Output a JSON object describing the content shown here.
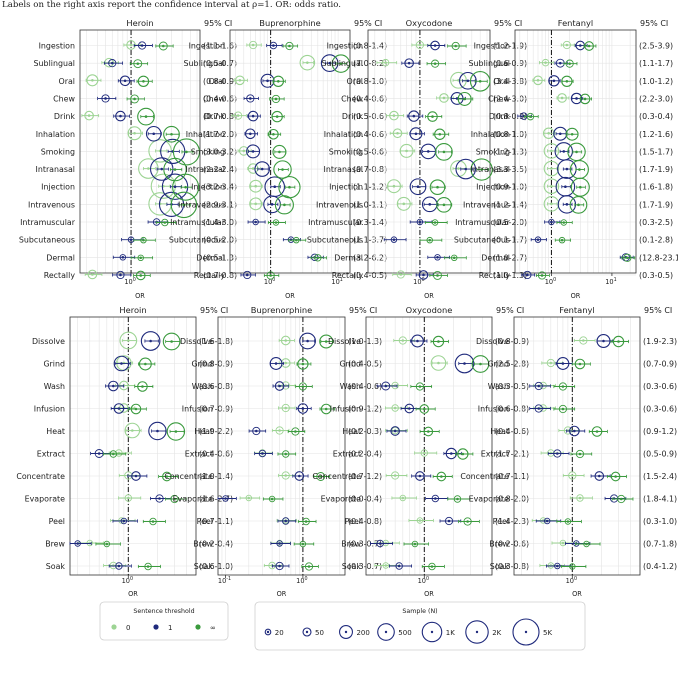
{
  "caption": "Labels on the right axis report the confidence interval at ρ=1. OR: odds ratio.",
  "colors": {
    "t0": "#9dd494",
    "t1": "#1f2a7c",
    "tinf": "#3a9a3d",
    "ref": "#999999"
  },
  "legend_threshold": {
    "title": "Sentence threshold",
    "labels": [
      "0",
      "1",
      "∞"
    ]
  },
  "legend_sample": {
    "title": "Sample (N)",
    "labels": [
      "20",
      "50",
      "200",
      "500",
      "1K",
      "2K",
      "5K"
    ]
  },
  "chart_data": [
    {
      "type": "scatter",
      "group": "routes",
      "title": "Heroin",
      "xlabel": "OR",
      "ci_header": "95% CI",
      "xscale": "log",
      "categories": [
        "Ingestion",
        "Sublingual",
        "Oral",
        "Chew",
        "Drink",
        "Inhalation",
        "Smoking",
        "Intranasal",
        "Injection",
        "Intravenous",
        "Intramuscular",
        "Subcutaneous",
        "Dermal",
        "Rectally"
      ],
      "ci_labels": [
        "(1.1-1.6)",
        "(0.5-0.7)",
        "(0.8-0.9)",
        "(0.4-0.6)",
        "(0.7-0.8)",
        "(1.7-2.0)",
        "(3.0-3.2)",
        "(2.2-2.4)",
        "(3.2-3.4)",
        "(2.9-3.1)",
        "(1.4-3.0)",
        "(0.5-2.0)",
        "(0.5-1.3)",
        "(0.7-0.8)"
      ],
      "series": [
        {
          "name": "0",
          "values": [
            1.0,
            0.55,
            0.35,
            null,
            0.32,
            1.1,
            2.2,
            1.6,
            2.4,
            2.2,
            null,
            null,
            null,
            0.35
          ],
          "n": [
            60,
            60,
            120,
            null,
            60,
            200,
            2000,
            1000,
            3000,
            2000,
            null,
            null,
            null,
            60
          ]
        },
        {
          "name": "1",
          "values": [
            1.35,
            0.6,
            0.85,
            0.5,
            0.75,
            1.85,
            3.1,
            2.3,
            3.3,
            3.0,
            2.0,
            1.0,
            0.8,
            0.75
          ],
          "n": [
            40,
            40,
            80,
            40,
            80,
            300,
            3000,
            2000,
            4000,
            3000,
            30,
            20,
            20,
            40
          ]
        },
        {
          "name": "∞",
          "values": [
            2.4,
            1.2,
            1.4,
            1.1,
            1.5,
            3.0,
            4.5,
            3.3,
            4.4,
            4.2,
            2.5,
            1.4,
            1.3,
            1.3
          ],
          "n": [
            50,
            50,
            100,
            50,
            500,
            400,
            5000,
            2000,
            5000,
            4000,
            30,
            20,
            20,
            60
          ]
        }
      ]
    },
    {
      "type": "scatter",
      "group": "routes",
      "title": "Buprenorphine",
      "xlabel": "OR",
      "ci_header": "95% CI",
      "xscale": "log",
      "categories": [
        "Ingestion",
        "Sublingual",
        "Oral",
        "Chew",
        "Drink",
        "Inhalation",
        "Smoking",
        "Intranasal",
        "Injection",
        "Intravenous",
        "Intramuscular",
        "Subcutaneous",
        "Dermal",
        "Rectally"
      ],
      "ci_labels": [
        "(0.8-1.4)",
        "(7.0-8.2)",
        "(0.8-1.0)",
        "(0.4-0.6)",
        "(0.5-0.6)",
        "(0.4-0.6)",
        "(0.5-0.6)",
        "(0.7-0.8)",
        "(1.1-1.2)",
        "(1.0-1.1)",
        "(0.3-1.4)",
        "(1.1-3.7)",
        "(3.2-6.2)",
        "(0.4-0.5)"
      ],
      "series": [
        {
          "name": "0",
          "values": [
            0.55,
            3.5,
            0.35,
            null,
            0.33,
            null,
            0.4,
            0.55,
            0.6,
            0.6,
            null,
            null,
            null,
            null
          ],
          "n": [
            40,
            300,
            60,
            null,
            40,
            null,
            60,
            80,
            150,
            150,
            null,
            null,
            null,
            null
          ]
        },
        {
          "name": "1",
          "values": [
            1.1,
            7.5,
            0.9,
            0.5,
            0.55,
            0.5,
            0.55,
            0.75,
            1.15,
            1.05,
            0.6,
            2.0,
            4.5,
            0.45
          ],
          "n": [
            30,
            500,
            200,
            40,
            80,
            80,
            200,
            300,
            1000,
            500,
            20,
            20,
            30,
            40
          ]
        },
        {
          "name": "∞",
          "values": [
            1.9,
            11.0,
            1.3,
            1.2,
            1.25,
            1.1,
            1.35,
            1.5,
            1.9,
            1.6,
            1.2,
            2.4,
            5.0,
            1.0
          ],
          "n": [
            40,
            600,
            100,
            40,
            100,
            80,
            200,
            600,
            1500,
            700,
            20,
            20,
            30,
            40
          ]
        }
      ]
    },
    {
      "type": "scatter",
      "group": "routes",
      "title": "Oxycodone",
      "xlabel": "OR",
      "ci_header": "95% CI",
      "xscale": "log",
      "categories": [
        "Ingestion",
        "Sublingual",
        "Oral",
        "Chew",
        "Drink",
        "Inhalation",
        "Smoking",
        "Intranasal",
        "Injection",
        "Intravenous",
        "Intramuscular",
        "Subcutaneous",
        "Dermal",
        "Rectally"
      ],
      "ci_labels": [
        "(1.2-1.9)",
        "(0.6-0.9)",
        "(3.4-3.8)",
        "(2.4-3.0)",
        "(0.8-0.9)",
        "(0.8-1.0)",
        "(1.2-1.3)",
        "(3.3-3.5)",
        "(0.9-1.0)",
        "(1.2-1.4)",
        "(0.5-2.0)",
        "(0.1-1.7)",
        "(1.0-2.7)",
        "(1.0-1.3)"
      ],
      "series": [
        {
          "name": "0",
          "values": [
            1.0,
            0.4,
            2.8,
            1.9,
            0.5,
            0.55,
            0.7,
            2.8,
            0.5,
            0.65,
            null,
            null,
            null,
            0.6
          ],
          "n": [
            40,
            30,
            400,
            60,
            60,
            60,
            200,
            400,
            200,
            200,
            null,
            null,
            null,
            40
          ]
        },
        {
          "name": "1",
          "values": [
            1.5,
            0.75,
            3.6,
            2.7,
            0.85,
            0.9,
            1.25,
            3.4,
            0.95,
            1.3,
            1.0,
            0.5,
            1.6,
            1.1
          ],
          "n": [
            60,
            60,
            500,
            150,
            100,
            150,
            300,
            1000,
            400,
            300,
            20,
            20,
            20,
            60
          ]
        },
        {
          "name": "∞",
          "values": [
            2.6,
            1.5,
            5.0,
            3.3,
            1.4,
            1.7,
            1.9,
            5.2,
            1.6,
            1.9,
            1.5,
            1.3,
            2.5,
            1.6
          ],
          "n": [
            40,
            40,
            1000,
            200,
            80,
            100,
            500,
            1500,
            300,
            300,
            20,
            20,
            20,
            50
          ]
        }
      ]
    },
    {
      "type": "scatter",
      "group": "routes",
      "title": "Fentanyl",
      "xlabel": "OR",
      "ci_header": "95% CI",
      "xscale": "log",
      "categories": [
        "Ingestion",
        "Sublingual",
        "Oral",
        "Chew",
        "Drink",
        "Inhalation",
        "Smoking",
        "Intranasal",
        "Injection",
        "Intravenous",
        "Intramuscular",
        "Subcutaneous",
        "Dermal",
        "Rectally"
      ],
      "ci_labels": [
        "(2.5-3.9)",
        "(1.1-1.7)",
        "(1.0-1.2)",
        "(2.2-3.0)",
        "(0.3-0.4)",
        "(1.2-1.6)",
        "(1.5-1.7)",
        "(1.7-1.9)",
        "(1.6-1.8)",
        "(1.7-1.9)",
        "(0.3-2.5)",
        "(0.1-2.8)",
        "(12.8-23.1)",
        "(0.3-0.5)"
      ],
      "series": [
        {
          "name": "0",
          "values": [
            1.8,
            0.8,
            0.6,
            1.5,
            null,
            0.9,
            1.0,
            1.0,
            1.0,
            1.0,
            null,
            null,
            null,
            null
          ],
          "n": [
            40,
            30,
            60,
            60,
            null,
            100,
            300,
            300,
            300,
            300,
            null,
            null,
            null,
            null
          ]
        },
        {
          "name": "1",
          "values": [
            3.0,
            1.4,
            1.1,
            2.6,
            0.35,
            1.4,
            1.6,
            1.8,
            1.7,
            1.8,
            1.0,
            0.6,
            17.0,
            0.4
          ],
          "n": [
            60,
            50,
            100,
            100,
            30,
            200,
            600,
            800,
            800,
            600,
            20,
            20,
            40,
            40
          ]
        },
        {
          "name": "∞",
          "values": [
            4.2,
            2.0,
            1.8,
            3.6,
            0.45,
            2.2,
            2.6,
            2.9,
            3.0,
            2.8,
            1.6,
            1.5,
            18.0,
            0.7
          ],
          "n": [
            60,
            40,
            100,
            80,
            30,
            150,
            600,
            700,
            700,
            500,
            20,
            20,
            40,
            40
          ]
        }
      ]
    },
    {
      "type": "scatter",
      "group": "prep",
      "title": "Heroin",
      "xlabel": "OR",
      "ci_header": "95% CI",
      "xscale": "log",
      "categories": [
        "Dissolve",
        "Grind",
        "Wash",
        "Infusion",
        "Heat",
        "Extract",
        "Concentrate",
        "Evaporate",
        "Peel",
        "Brew",
        "Soak"
      ],
      "ci_labels": [
        "(1.6-1.8)",
        "(0.8-0.9)",
        "(0.6-0.8)",
        "(0.7-0.9)",
        "(1.9-2.2)",
        "(0.4-0.6)",
        "(1.0-1.4)",
        "(1.6-2.7)",
        "(0.7-1.1)",
        "(0.2-0.4)",
        "(0.6-1.0)"
      ],
      "series": [
        {
          "name": "0",
          "values": [
            1.0,
            0.9,
            0.9,
            0.9,
            1.1,
            0.8,
            1.0,
            1.0,
            0.85,
            0.4,
            0.7
          ],
          "n": [
            500,
            300,
            60,
            60,
            300,
            30,
            40,
            30,
            20,
            20,
            30
          ]
        },
        {
          "name": "1",
          "values": [
            1.7,
            0.85,
            0.7,
            0.8,
            2.0,
            0.5,
            1.2,
            2.1,
            0.9,
            0.3,
            0.8
          ],
          "n": [
            800,
            300,
            80,
            80,
            600,
            50,
            60,
            40,
            20,
            20,
            30
          ]
        },
        {
          "name": "∞",
          "values": [
            2.8,
            1.5,
            1.4,
            1.2,
            3.1,
            0.7,
            2.5,
            3.0,
            1.8,
            0.6,
            1.6
          ],
          "n": [
            500,
            150,
            80,
            80,
            600,
            30,
            60,
            40,
            30,
            20,
            30
          ]
        }
      ]
    },
    {
      "type": "scatter",
      "group": "prep",
      "title": "Buprenorphine",
      "xlabel": "OR",
      "ci_header": "95% CI",
      "xscale": "log",
      "categories": [
        "Dissolve",
        "Grind",
        "Wash",
        "Infusion",
        "Heat",
        "Extract",
        "Concentrate",
        "Evaporate",
        "Peel",
        "Brew",
        "Soak"
      ],
      "ci_labels": [
        "(1.0-1.3)",
        "(0.4-0.5)",
        "(0.4-0.6)",
        "(0.9-1.2)",
        "(0.2-0.3)",
        "(0.2-0.4)",
        "(0.7-1.2)",
        "(0.0-0.4)",
        "(0.4-0.8)",
        "(0.3-0.7)",
        "(0.3-0.7)"
      ],
      "series": [
        {
          "name": "0",
          "values": [
            0.6,
            0.6,
            0.6,
            0.6,
            0.5,
            0.3,
            0.6,
            0.2,
            0.6,
            0.5,
            0.4
          ],
          "n": [
            60,
            60,
            40,
            40,
            40,
            30,
            40,
            20,
            20,
            20,
            30
          ]
        },
        {
          "name": "1",
          "values": [
            1.15,
            0.45,
            0.5,
            1.0,
            0.25,
            0.3,
            0.9,
            0.1,
            0.6,
            0.5,
            0.5
          ],
          "n": [
            400,
            150,
            60,
            80,
            40,
            30,
            60,
            20,
            30,
            20,
            40
          ]
        },
        {
          "name": "∞",
          "values": [
            2.0,
            1.0,
            1.0,
            2.0,
            0.8,
            0.6,
            1.7,
            0.4,
            1.1,
            1.0,
            1.2
          ],
          "n": [
            200,
            100,
            40,
            80,
            40,
            30,
            50,
            20,
            30,
            20,
            40
          ]
        }
      ]
    },
    {
      "type": "scatter",
      "group": "prep",
      "title": "Oxycodone",
      "xlabel": "OR",
      "ci_header": "95% CI",
      "xscale": "log",
      "categories": [
        "Dissolve",
        "Grind",
        "Wash",
        "Infusion",
        "Heat",
        "Extract",
        "Concentrate",
        "Evaporate",
        "Peel",
        "Brew",
        "Soak"
      ],
      "ci_labels": [
        "(0.8-0.9)",
        "(2.5-2.8)",
        "(0.3-0.5)",
        "(0.6-0.8)",
        "(0.4-0.6)",
        "(1.7-2.1)",
        "(0.7-1.1)",
        "(0.8-2.0)",
        "(1.4-2.3)",
        "(0.2-0.6)",
        "(0.3-0.8)"
      ],
      "series": [
        {
          "name": "0",
          "values": [
            0.6,
            1.4,
            0.5,
            0.5,
            0.5,
            1.0,
            0.5,
            0.6,
            0.9,
            0.4,
            0.4
          ],
          "n": [
            40,
            300,
            30,
            30,
            30,
            30,
            40,
            20,
            20,
            20,
            20
          ]
        },
        {
          "name": "1",
          "values": [
            0.85,
            2.6,
            0.4,
            0.7,
            0.5,
            1.9,
            0.9,
            1.3,
            1.8,
            0.35,
            0.55
          ],
          "n": [
            150,
            800,
            50,
            60,
            60,
            100,
            60,
            30,
            40,
            30,
            30
          ]
        },
        {
          "name": "∞",
          "values": [
            1.4,
            3.8,
            0.9,
            1.0,
            1.1,
            2.5,
            1.5,
            2.2,
            2.8,
            0.8,
            1.2
          ],
          "n": [
            100,
            500,
            40,
            60,
            60,
            100,
            60,
            30,
            40,
            20,
            30
          ]
        }
      ]
    },
    {
      "type": "scatter",
      "group": "prep",
      "title": "Fentanyl",
      "xlabel": "OR",
      "ci_header": "95% CI",
      "xscale": "log",
      "categories": [
        "Dissolve",
        "Grind",
        "Wash",
        "Infusion",
        "Heat",
        "Extract",
        "Concentrate",
        "Evaporate",
        "Peel",
        "Brew",
        "Soak"
      ],
      "ci_labels": [
        "(1.9-2.3)",
        "(0.7-0.9)",
        "(0.3-0.6)",
        "(0.3-0.6)",
        "(0.9-1.2)",
        "(0.5-0.9)",
        "(1.5-2.4)",
        "(1.8-4.1)",
        "(0.3-1.0)",
        "(0.7-1.8)",
        "(0.4-1.2)"
      ],
      "series": [
        {
          "name": "0",
          "values": [
            1.3,
            0.6,
            0.5,
            0.5,
            0.9,
            0.6,
            1.0,
            1.2,
            0.5,
            0.8,
            0.6
          ],
          "n": [
            40,
            40,
            30,
            30,
            40,
            30,
            40,
            30,
            20,
            20,
            20
          ]
        },
        {
          "name": "1",
          "values": [
            2.1,
            0.8,
            0.45,
            0.45,
            1.05,
            0.7,
            1.9,
            2.7,
            0.55,
            1.1,
            0.7
          ],
          "n": [
            200,
            150,
            40,
            40,
            80,
            40,
            60,
            40,
            20,
            20,
            20
          ]
        },
        {
          "name": "∞",
          "values": [
            3.0,
            1.2,
            0.8,
            0.8,
            1.8,
            1.2,
            2.8,
            3.2,
            0.9,
            1.4,
            1.0
          ],
          "n": [
            100,
            80,
            40,
            40,
            80,
            40,
            60,
            40,
            20,
            20,
            20
          ]
        }
      ]
    }
  ]
}
